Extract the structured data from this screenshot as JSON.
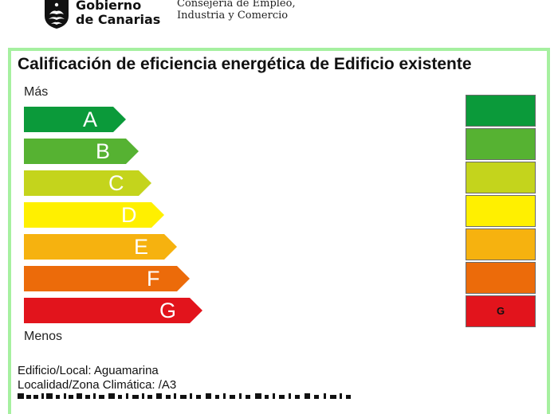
{
  "header": {
    "gov_line1": "Gobierno",
    "gov_line2": "de Canarias",
    "dept_line1": "Consejería de Empleo,",
    "dept_line2": "Industria y Comercio"
  },
  "title": "Calificación de eficiencia energética de Edificio existente",
  "scale_top": "Más",
  "scale_bottom": "Menos",
  "ratings": [
    {
      "letter": "A",
      "color": "#0b9a3a"
    },
    {
      "letter": "B",
      "color": "#56b232"
    },
    {
      "letter": "C",
      "color": "#c4d41c"
    },
    {
      "letter": "D",
      "color": "#fff000"
    },
    {
      "letter": "E",
      "color": "#f6b20f"
    },
    {
      "letter": "F",
      "color": "#ec6b0a"
    },
    {
      "letter": "G",
      "color": "#e2141c"
    }
  ],
  "current_rating": "G",
  "info": {
    "line1": "Edificio/Local:  Aguamarina",
    "line2": "Localidad/Zona Climática:  /A3"
  }
}
